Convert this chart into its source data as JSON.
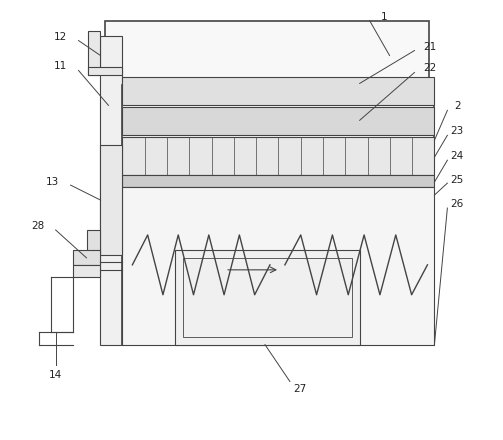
{
  "bg_color": "#ffffff",
  "lc": "#444444",
  "lw": 0.8,
  "tlw": 1.2,
  "fig_w": 5.03,
  "fig_h": 4.4,
  "dpi": 100
}
